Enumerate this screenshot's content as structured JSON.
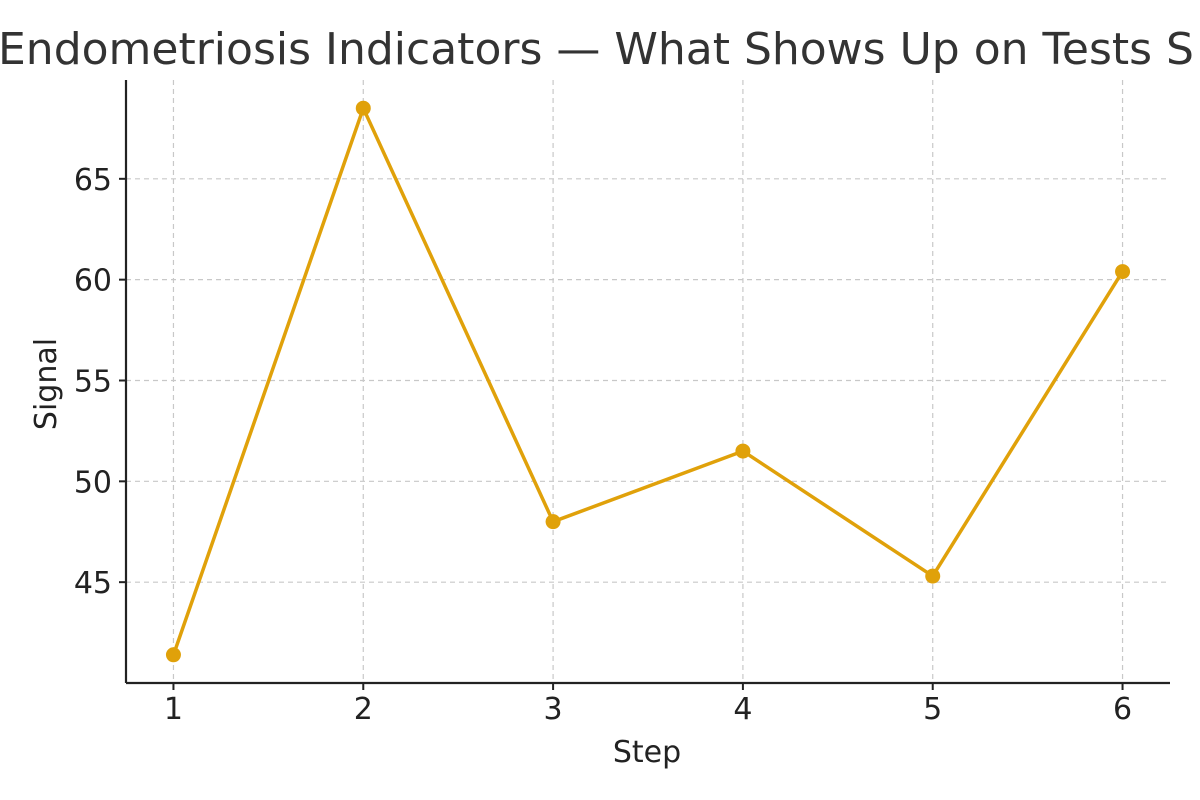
{
  "chart_data": {
    "type": "line",
    "title": "Endometriosis Indicators — What Shows Up on Tests S",
    "xlabel": "Step",
    "ylabel": "Signal",
    "x": [
      1,
      2,
      3,
      4,
      5,
      6
    ],
    "series": [
      {
        "name": "Signal",
        "values": [
          41.4,
          68.5,
          48.0,
          51.5,
          45.3,
          60.4
        ],
        "color": "#e0a10a",
        "marker": "circle"
      }
    ],
    "xticks": [
      1,
      2,
      3,
      4,
      5,
      6
    ],
    "yticks": [
      45,
      50,
      55,
      60,
      65
    ],
    "xlim": [
      0.75,
      6.25
    ],
    "ylim": [
      40,
      69.9
    ],
    "grid": true,
    "legend": "none"
  }
}
